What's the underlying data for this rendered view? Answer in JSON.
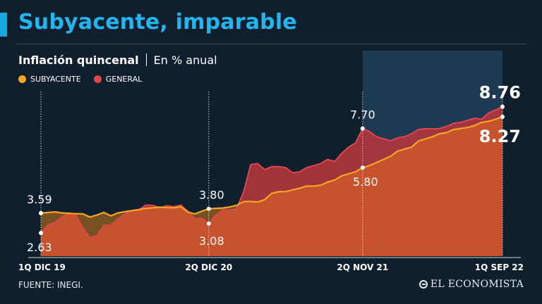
{
  "header": {
    "title": "Subyacente, imparable",
    "subtitle_main": "Inflación quincenal",
    "subtitle_unit": "En % anual"
  },
  "legend": {
    "subyacente_label": "SUBYACENTE",
    "general_label": "GENERAL"
  },
  "footer": {
    "source": "FUENTE: INEGI.",
    "brand": "EL ECONOMISTA"
  },
  "colors": {
    "background": "#0f1f2e",
    "title": "#22b5ee",
    "subyacente": "#f6a623",
    "general": "#e0474c"
  },
  "chart_data": {
    "type": "area",
    "x_labels": [
      "1Q DIC 19",
      "2Q DIC 20",
      "2Q NOV 21",
      "1Q SEP 22"
    ],
    "period_count": 66,
    "label_index": [
      0,
      24,
      46,
      66
    ],
    "ylim": [
      1.5,
      9.5
    ],
    "highlight_range": [
      46,
      66
    ],
    "series": [
      {
        "name": "SUBYACENTE",
        "values": [
          3.59,
          3.62,
          3.65,
          3.6,
          3.58,
          3.56,
          3.55,
          3.4,
          3.5,
          3.62,
          3.46,
          3.6,
          3.66,
          3.71,
          3.76,
          3.82,
          3.85,
          3.88,
          3.86,
          3.85,
          3.9,
          3.64,
          3.55,
          3.68,
          3.8,
          3.82,
          3.84,
          3.89,
          3.97,
          4.15,
          4.16,
          4.13,
          4.25,
          4.55,
          4.63,
          4.64,
          4.72,
          4.8,
          4.9,
          4.9,
          4.95,
          5.1,
          5.2,
          5.4,
          5.5,
          5.6,
          5.8,
          5.9,
          6.05,
          6.2,
          6.35,
          6.6,
          6.7,
          6.8,
          7.1,
          7.2,
          7.3,
          7.45,
          7.5,
          7.65,
          7.7,
          7.75,
          7.85,
          8.0,
          8.05,
          8.15,
          8.27
        ]
      },
      {
        "name": "GENERAL",
        "values": [
          2.63,
          3.0,
          3.15,
          3.4,
          3.6,
          3.5,
          2.85,
          2.4,
          2.5,
          3.0,
          3.0,
          3.3,
          3.55,
          3.72,
          3.75,
          3.98,
          3.97,
          3.85,
          3.95,
          3.9,
          3.98,
          3.68,
          3.3,
          3.35,
          3.08,
          3.5,
          3.75,
          3.72,
          3.82,
          4.65,
          5.95,
          6.0,
          5.7,
          5.85,
          5.85,
          5.8,
          5.55,
          5.6,
          5.8,
          5.9,
          6.0,
          6.2,
          6.1,
          6.5,
          6.8,
          7.0,
          7.7,
          7.55,
          7.3,
          7.2,
          7.1,
          7.25,
          7.3,
          7.45,
          7.65,
          7.7,
          7.68,
          7.7,
          7.8,
          7.95,
          8.0,
          8.1,
          8.2,
          8.15,
          8.45,
          8.6,
          8.76
        ]
      }
    ],
    "annotations": [
      {
        "series": "SUBYACENTE",
        "index": 0,
        "label": "3.59"
      },
      {
        "series": "GENERAL",
        "index": 0,
        "label": "2.63"
      },
      {
        "series": "SUBYACENTE",
        "index": 24,
        "label": "3.80"
      },
      {
        "series": "GENERAL",
        "index": 24,
        "label": "3.08"
      },
      {
        "series": "GENERAL",
        "index": 46,
        "label": "7.70"
      },
      {
        "series": "SUBYACENTE",
        "index": 46,
        "label": "5.80"
      },
      {
        "series": "GENERAL",
        "index": 66,
        "label": "8.76"
      },
      {
        "series": "SUBYACENTE",
        "index": 66,
        "label": "8.27"
      }
    ]
  }
}
